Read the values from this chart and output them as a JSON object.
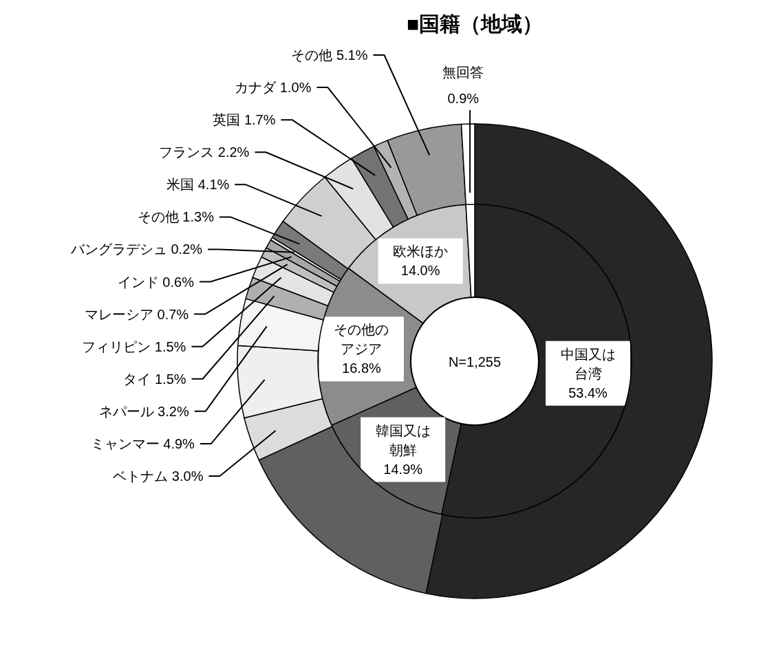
{
  "chart_data": [
    {
      "type": "donut",
      "title": "■国籍（地域）",
      "categories": [
        "中国又は台湾",
        "韓国又は朝鮮",
        "その他のアジア",
        "欧米ほか",
        null
      ],
      "values": [
        53.4,
        14.9,
        16.8,
        14.0,
        0.9
      ],
      "value_labels": [
        "53.4%",
        "14.9%",
        "16.8%",
        "14.0%",
        null
      ],
      "colors": [
        "#262626",
        "#606060",
        "#8c8c8c",
        "#c8c8c8",
        "#ffffff"
      ],
      "annotations": [
        "N=1,255"
      ]
    },
    {
      "type": "donut",
      "categories": [
        null,
        null,
        "ベトナム",
        "ミャンマー",
        "ネパール",
        "タイ",
        "フィリピン",
        "マレーシア",
        "インド",
        "バングラデシュ",
        "その他",
        "米国",
        "フランス",
        "英国",
        "カナダ",
        "その他",
        "無回答"
      ],
      "values": [
        53.4,
        14.9,
        3.0,
        4.9,
        3.2,
        1.5,
        1.5,
        0.7,
        0.6,
        0.2,
        1.3,
        4.1,
        2.2,
        1.7,
        1.0,
        5.1,
        0.9
      ],
      "value_labels": [
        null,
        null,
        "3.0%",
        "4.9%",
        "3.2%",
        "1.5%",
        "1.5%",
        "0.7%",
        "0.6%",
        "0.2%",
        "1.3%",
        "4.1%",
        "2.2%",
        "1.7%",
        "1.0%",
        "5.1%",
        "0.9%"
      ],
      "colors": [
        "#262626",
        "#606060",
        "#dcdcdc",
        "#efefef",
        "#f5f5f5",
        "#b0b0b0",
        "#e4e4e4",
        "#bfbfbf",
        "#a6a6a6",
        "#f0f0f0",
        "#7a7a7a",
        "#cfcfcf",
        "#e2e2e2",
        "#737373",
        "#b3b3b3",
        "#999999",
        "#ffffff"
      ]
    }
  ]
}
